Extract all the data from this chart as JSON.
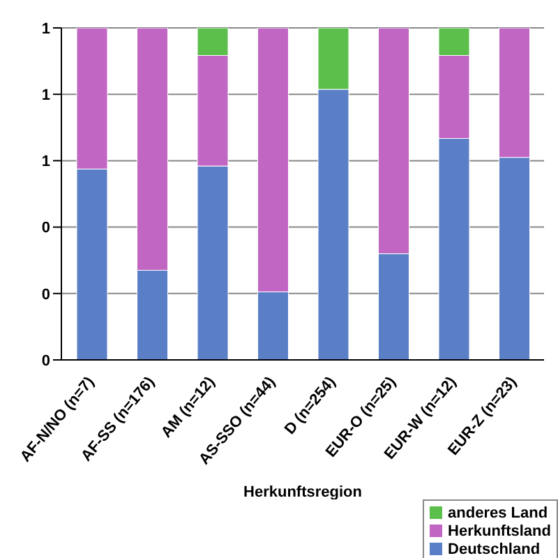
{
  "chart_data": {
    "type": "bar",
    "stacked": true,
    "xlabel": "Herkunftsregion",
    "categories": [
      "AF-N/NO (n=7)",
      "AF-SS (n=176)",
      "AM (n=12)",
      "AS-SSO (n=44)",
      "D (n=254)",
      "EUR-O (n=25)",
      "EUR-W (n=12)",
      "EUR-Z (n=23)"
    ],
    "series": [
      {
        "name": "Deutschland",
        "color": "#5b7fc6",
        "values": [
          0.575,
          0.27,
          0.584,
          0.205,
          0.815,
          0.32,
          0.667,
          0.61
        ]
      },
      {
        "name": "Herkunftsland",
        "color": "#c266c4",
        "values": [
          0.425,
          0.73,
          0.333,
          0.795,
          0,
          0.68,
          0.25,
          0.39
        ]
      },
      {
        "name": "anderes Land",
        "color": "#5cbf4c",
        "values": [
          0,
          0,
          0.083,
          0,
          0.185,
          0,
          0.083,
          0
        ]
      }
    ],
    "ylim": [
      0,
      1
    ],
    "yticks": [
      0,
      {
        "value": 0.2,
        "label": "0"
      },
      {
        "value": 0.4,
        "label": "0"
      },
      {
        "value": 0.6,
        "label": "1"
      },
      {
        "value": 0.8,
        "label": "1"
      },
      1
    ],
    "grid": "y",
    "legend": "bottom right"
  }
}
